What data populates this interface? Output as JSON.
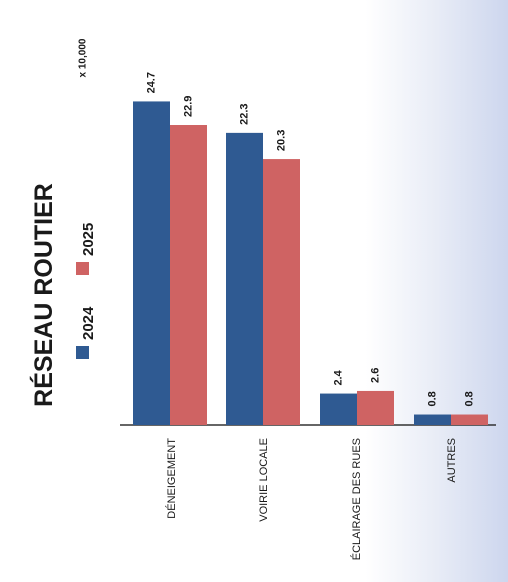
{
  "chart_data": {
    "type": "bar",
    "title": "RÉSEAU ROUTIER",
    "unit_label": "x 10,000",
    "categories": [
      "DÉNEIGEMENT",
      "VOIRIE LOCALE",
      "ÉCLAIRAGE DES RUES",
      "AUTRES"
    ],
    "series": [
      {
        "name": "2024",
        "color": "#2f5a92",
        "values": [
          24.7,
          22.3,
          2.4,
          0.8
        ]
      },
      {
        "name": "2025",
        "color": "#cf6363",
        "values": [
          22.9,
          20.3,
          2.6,
          0.8
        ]
      }
    ],
    "value_labels": [
      [
        "24.7",
        "22.3",
        "2.4",
        "0.8"
      ],
      [
        "22.9",
        "20.3",
        "2.6",
        "0.8"
      ]
    ],
    "ylim": [
      0,
      26
    ],
    "grid": false,
    "legend_position": "left",
    "orientation": "rotated-90"
  }
}
